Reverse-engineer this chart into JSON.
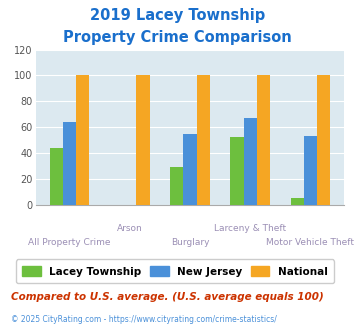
{
  "title_line1": "2019 Lacey Township",
  "title_line2": "Property Crime Comparison",
  "title_color": "#1a6fcc",
  "categories": [
    "All Property Crime",
    "Arson",
    "Burglary",
    "Larceny & Theft",
    "Motor Vehicle Theft"
  ],
  "upper_labels": [
    "",
    "Arson",
    "",
    "Larceny & Theft",
    ""
  ],
  "lower_labels": [
    "All Property Crime",
    "",
    "Burglary",
    "",
    "Motor Vehicle Theft"
  ],
  "series": {
    "Lacey Township": [
      44,
      0,
      29,
      52,
      5
    ],
    "New Jersey": [
      64,
      0,
      55,
      67,
      53
    ],
    "National": [
      100,
      100,
      100,
      100,
      100
    ]
  },
  "colors": {
    "Lacey Township": "#6dbf3e",
    "New Jersey": "#4a90d9",
    "National": "#f5a623"
  },
  "ylim": [
    0,
    120
  ],
  "yticks": [
    0,
    20,
    40,
    60,
    80,
    100,
    120
  ],
  "plot_bg": "#dce9f0",
  "grid_color": "#ffffff",
  "xlabel_color": "#9b8fb5",
  "tick_color": "#555555",
  "footer_text": "Compared to U.S. average. (U.S. average equals 100)",
  "footer_color": "#cc3300",
  "credit_text": "© 2025 CityRating.com - https://www.cityrating.com/crime-statistics/",
  "credit_color": "#4a90d9",
  "bar_width": 0.22
}
